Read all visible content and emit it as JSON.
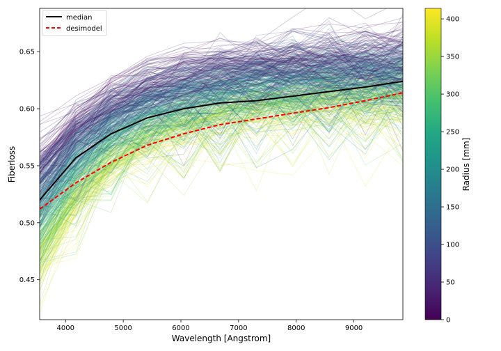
{
  "chart_data": {
    "type": "line",
    "xlabel": "Wavelength [Angstrom]",
    "ylabel": "Fiberloss",
    "xlim": [
      3550,
      9850
    ],
    "ylim": [
      0.415,
      0.688
    ],
    "x_ticks": [
      4000,
      5000,
      6000,
      7000,
      8000,
      9000
    ],
    "y_ticks": [
      0.45,
      0.5,
      0.55,
      0.6,
      0.65
    ],
    "x_tick_labels": [
      "4000",
      "5000",
      "6000",
      "7000",
      "8000",
      "9000"
    ],
    "y_tick_labels": [
      "0.45",
      "0.50",
      "0.55",
      "0.60",
      "0.65"
    ],
    "x": [
      3550,
      4180,
      4790,
      5420,
      6050,
      6680,
      7310,
      7940,
      8570,
      9200,
      9850
    ],
    "series": [
      {
        "name": "median",
        "color": "#000000",
        "style": "solid",
        "values": [
          0.52,
          0.557,
          0.578,
          0.592,
          0.6,
          0.605,
          0.607,
          0.611,
          0.615,
          0.619,
          0.624
        ]
      },
      {
        "name": "desimodel",
        "color": "#ff0000",
        "style": "dashed",
        "values": [
          0.512,
          0.535,
          0.553,
          0.568,
          0.578,
          0.586,
          0.591,
          0.596,
          0.601,
          0.607,
          0.614
        ]
      }
    ],
    "background_lines": {
      "description_encoding": "one faint line per fiber, colored by radius",
      "count": 500,
      "opacity": 0.22,
      "colormap": "viridis"
    },
    "colorbar": {
      "label": "Radius [mm]",
      "min": 0,
      "max": 414,
      "ticks": [
        0,
        50,
        100,
        150,
        200,
        250,
        300,
        350,
        400
      ],
      "tick_labels": [
        "0",
        "50",
        "100",
        "150",
        "200",
        "250",
        "300",
        "350",
        "400"
      ]
    },
    "legend": {
      "placement": "top-left",
      "entries": [
        "median",
        "desimodel"
      ]
    },
    "grid": false
  }
}
